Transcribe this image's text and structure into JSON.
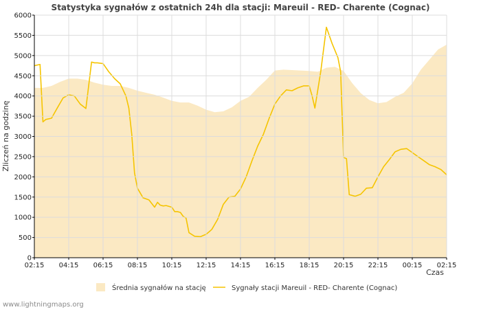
{
  "chart_data": {
    "type": "area",
    "title": "Statystyka sygnałów z ostatnich 24h dla stacji: Mareuil - RED- Charente (Cognac)",
    "xlabel": "Czas",
    "ylabel": "Zliczeń na godzinę",
    "xlim": [
      0,
      24
    ],
    "ylim": [
      0,
      6000
    ],
    "y_ticks": [
      0,
      500,
      1000,
      1500,
      2000,
      2500,
      3000,
      3500,
      4000,
      4500,
      5000,
      5500,
      6000
    ],
    "x_ticks": [
      {
        "pos": 0,
        "label": "02:15"
      },
      {
        "pos": 2,
        "label": "04:15"
      },
      {
        "pos": 4,
        "label": "06:15"
      },
      {
        "pos": 6,
        "label": "08:15"
      },
      {
        "pos": 8,
        "label": "10:15"
      },
      {
        "pos": 10,
        "label": "12:15"
      },
      {
        "pos": 12,
        "label": "14:15"
      },
      {
        "pos": 14,
        "label": "16:15"
      },
      {
        "pos": 16,
        "label": "18:15"
      },
      {
        "pos": 18,
        "label": "20:15"
      },
      {
        "pos": 20,
        "label": "22:15"
      },
      {
        "pos": 22,
        "label": "00:15"
      },
      {
        "pos": 24,
        "label": "02:15"
      }
    ],
    "grid": true,
    "legend_position": "bottom",
    "series": [
      {
        "name": "Średnia sygnałów na stację",
        "kind": "area",
        "color": "#fbe9c3",
        "x": [
          0,
          0.5,
          1,
          1.5,
          2,
          2.5,
          3,
          3.5,
          4,
          4.5,
          5,
          5.5,
          6,
          6.5,
          7,
          7.5,
          8,
          8.5,
          9,
          9.5,
          10,
          10.5,
          11,
          11.5,
          12,
          12.5,
          13,
          13.5,
          14,
          14.5,
          15,
          15.5,
          16,
          16.5,
          17,
          17.5,
          18,
          18.5,
          19,
          19.5,
          20,
          20.5,
          21,
          21.5,
          22,
          22.5,
          23,
          23.5,
          24
        ],
        "values": [
          4200,
          4200,
          4250,
          4350,
          4430,
          4430,
          4400,
          4330,
          4280,
          4250,
          4250,
          4200,
          4130,
          4080,
          4030,
          3960,
          3880,
          3840,
          3840,
          3760,
          3660,
          3600,
          3620,
          3720,
          3880,
          3980,
          4200,
          4400,
          4630,
          4650,
          4640,
          4630,
          4620,
          4600,
          4700,
          4720,
          4620,
          4320,
          4070,
          3900,
          3820,
          3850,
          3980,
          4080,
          4310,
          4650,
          4900,
          5150,
          5270
        ]
      },
      {
        "name": "Sygnały stacji Mareuil - RED- Charente (Cognac)",
        "kind": "line",
        "color": "#f5c400",
        "x": [
          0,
          0.33,
          0.5,
          0.67,
          1,
          1.33,
          1.67,
          2,
          2.33,
          2.67,
          3,
          3.33,
          3.5,
          3.67,
          4,
          4.33,
          4.67,
          5,
          5.33,
          5.5,
          5.67,
          5.83,
          6,
          6.33,
          6.67,
          7,
          7.17,
          7.33,
          7.5,
          7.67,
          8,
          8.17,
          8.33,
          8.5,
          8.67,
          8.83,
          9,
          9.33,
          9.67,
          10,
          10.17,
          10.33,
          10.67,
          11,
          11.33,
          11.67,
          12,
          12.33,
          12.67,
          13,
          13.33,
          13.67,
          14,
          14.33,
          14.67,
          15,
          15.33,
          15.67,
          16,
          16.17,
          16.33,
          16.67,
          17,
          17.33,
          17.67,
          17.83,
          18,
          18.17,
          18.33,
          18.67,
          19,
          19.33,
          19.67,
          20,
          20.33,
          20.67,
          21,
          21.33,
          21.67,
          22,
          22.33,
          22.67,
          23,
          23.33,
          23.67,
          24
        ],
        "values": [
          4750,
          4780,
          3360,
          3420,
          3450,
          3700,
          3950,
          4030,
          4000,
          3800,
          3690,
          4840,
          4820,
          4820,
          4800,
          4600,
          4430,
          4300,
          4000,
          3700,
          3050,
          2100,
          1720,
          1480,
          1430,
          1250,
          1370,
          1300,
          1280,
          1290,
          1250,
          1140,
          1140,
          1120,
          1020,
          980,
          620,
          530,
          520,
          580,
          640,
          700,
          950,
          1320,
          1500,
          1520,
          1700,
          2000,
          2400,
          2760,
          3050,
          3450,
          3800,
          4000,
          4150,
          4130,
          4200,
          4250,
          4250,
          4000,
          3700,
          4600,
          5700,
          5300,
          4950,
          4600,
          2480,
          2450,
          1560,
          1520,
          1570,
          1720,
          1730,
          2000,
          2250,
          2430,
          2620,
          2680,
          2700,
          2600,
          2500,
          2400,
          2300,
          2250,
          2180,
          2050
        ]
      }
    ]
  },
  "credit": "www.lightningmaps.org"
}
